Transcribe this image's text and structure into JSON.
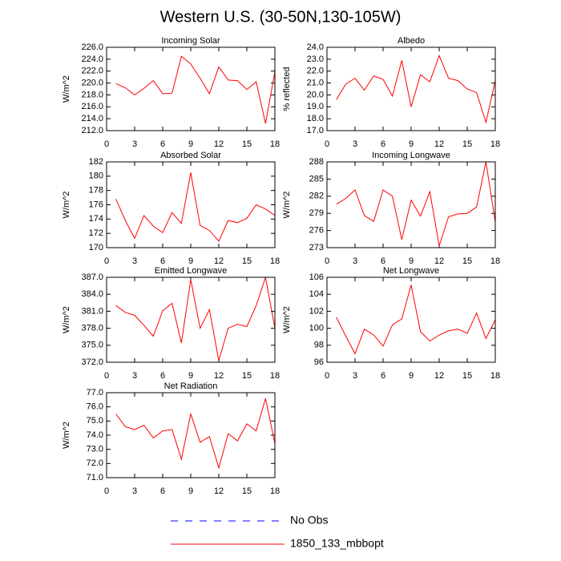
{
  "header": {
    "title": "Western U.S. (30-50N,130-105W)"
  },
  "legend": [
    {
      "name": "No Obs",
      "color": "#0000ff",
      "dashed": true
    },
    {
      "name": "1850_133_mbbopt",
      "color": "#ff0000",
      "dashed": false
    }
  ],
  "chart_data": [
    {
      "type": "line",
      "title": "Incoming Solar",
      "y_label": "W/m^2",
      "x": [
        1,
        2,
        3,
        4,
        5,
        6,
        7,
        8,
        9,
        10,
        11,
        12,
        13,
        14,
        15,
        16,
        17,
        18
      ],
      "series": [
        {
          "color": "#ff0000",
          "values": [
            219.9,
            219.2,
            218.0,
            219.1,
            220.4,
            218.2,
            218.3,
            224.5,
            223.2,
            220.8,
            218.2,
            222.7,
            220.5,
            220.4,
            218.9,
            220.2,
            213.2,
            221.9
          ]
        }
      ],
      "xlim": [
        0,
        18
      ],
      "xticks": [
        0,
        3,
        6,
        9,
        12,
        15,
        18
      ],
      "ylim": [
        212,
        226
      ],
      "yticks": [
        {
          "value": 212,
          "label": "212.0"
        },
        {
          "value": 214,
          "label": "214.0"
        },
        {
          "value": 216,
          "label": "216.0"
        },
        {
          "value": 218,
          "label": "218.0"
        },
        {
          "value": 220,
          "label": "220.0"
        },
        {
          "value": 222,
          "label": "222.0"
        },
        {
          "value": 224,
          "label": "224.0"
        },
        {
          "value": 226,
          "label": "226.0"
        }
      ]
    },
    {
      "type": "line",
      "title": "Albedo",
      "y_label": "% reflected",
      "x": [
        1,
        2,
        3,
        4,
        5,
        6,
        7,
        8,
        9,
        10,
        11,
        12,
        13,
        14,
        15,
        16,
        17,
        18
      ],
      "series": [
        {
          "color": "#ff0000",
          "values": [
            19.6,
            20.9,
            21.4,
            20.4,
            21.6,
            21.3,
            19.9,
            22.9,
            19.0,
            21.7,
            21.1,
            23.3,
            21.4,
            21.2,
            20.5,
            20.2,
            17.7,
            21.2
          ]
        }
      ],
      "xlim": [
        0,
        18
      ],
      "xticks": [
        0,
        3,
        6,
        9,
        12,
        15,
        18
      ],
      "ylim": [
        17,
        24
      ],
      "yticks": [
        {
          "value": 17,
          "label": "17.0"
        },
        {
          "value": 18,
          "label": "18.0"
        },
        {
          "value": 19,
          "label": "19.0"
        },
        {
          "value": 20,
          "label": "20.0"
        },
        {
          "value": 21,
          "label": "21.0"
        },
        {
          "value": 22,
          "label": "22.0"
        },
        {
          "value": 23,
          "label": "23.0"
        },
        {
          "value": 24,
          "label": "24.0"
        }
      ]
    },
    {
      "type": "line",
      "title": "Absorbed Solar",
      "y_label": "W/m^2",
      "x": [
        1,
        2,
        3,
        4,
        5,
        6,
        7,
        8,
        9,
        10,
        11,
        12,
        13,
        14,
        15,
        16,
        17,
        18
      ],
      "series": [
        {
          "color": "#ff0000",
          "values": [
            176.8,
            173.8,
            171.3,
            174.5,
            173.0,
            172.1,
            174.9,
            173.4,
            180.5,
            173.1,
            172.4,
            170.9,
            173.8,
            173.5,
            174.1,
            176.0,
            175.4,
            174.5
          ]
        }
      ],
      "xlim": [
        0,
        18
      ],
      "xticks": [
        0,
        3,
        6,
        9,
        12,
        15,
        18
      ],
      "ylim": [
        170,
        182
      ],
      "yticks": [
        170,
        172,
        174,
        176,
        178,
        180,
        182
      ]
    },
    {
      "type": "line",
      "title": "Incoming Longwave",
      "y_label": "W/m^2",
      "x": [
        1,
        2,
        3,
        4,
        5,
        6,
        7,
        8,
        9,
        10,
        11,
        12,
        13,
        14,
        15,
        16,
        17,
        18
      ],
      "series": [
        {
          "color": "#ff0000",
          "values": [
            280.6,
            281.6,
            283.1,
            278.6,
            277.6,
            283.1,
            282.0,
            274.4,
            281.3,
            278.5,
            282.8,
            273.3,
            278.4,
            278.9,
            279.0,
            280.1,
            288.0,
            277.5
          ]
        }
      ],
      "xlim": [
        0,
        18
      ],
      "xticks": [
        0,
        3,
        6,
        9,
        12,
        15,
        18
      ],
      "ylim": [
        273,
        288
      ],
      "yticks": [
        273,
        276,
        279,
        282,
        285,
        288
      ]
    },
    {
      "type": "line",
      "title": "Emitted Longwave",
      "y_label": "W/m^2",
      "x": [
        1,
        2,
        3,
        4,
        5,
        6,
        7,
        8,
        9,
        10,
        11,
        12,
        13,
        14,
        15,
        16,
        17,
        18
      ],
      "series": [
        {
          "color": "#ff0000",
          "values": [
            382.0,
            380.8,
            380.3,
            378.5,
            376.6,
            381.1,
            382.4,
            375.4,
            386.6,
            378.0,
            381.3,
            372.3,
            378.0,
            378.7,
            378.3,
            382.0,
            387.0,
            378.0
          ]
        }
      ],
      "xlim": [
        0,
        18
      ],
      "xticks": [
        0,
        3,
        6,
        9,
        12,
        15,
        18
      ],
      "ylim": [
        372,
        387
      ],
      "yticks": [
        {
          "value": 372,
          "label": "372.0"
        },
        {
          "value": 375,
          "label": "375.0"
        },
        {
          "value": 378,
          "label": "378.0"
        },
        {
          "value": 381,
          "label": "381.0"
        },
        {
          "value": 384,
          "label": "384.0"
        },
        {
          "value": 387,
          "label": "387.0"
        }
      ]
    },
    {
      "type": "line",
      "title": "Net Longwave",
      "y_label": "W/m^2",
      "x": [
        1,
        2,
        3,
        4,
        5,
        6,
        7,
        8,
        9,
        10,
        11,
        12,
        13,
        14,
        15,
        16,
        17,
        18
      ],
      "series": [
        {
          "color": "#ff0000",
          "values": [
            101.3,
            99.1,
            97.0,
            99.9,
            99.2,
            97.9,
            100.4,
            101.1,
            105.1,
            99.6,
            98.5,
            99.2,
            99.7,
            99.9,
            99.4,
            101.8,
            98.8,
            101.0
          ]
        }
      ],
      "xlim": [
        0,
        18
      ],
      "xticks": [
        0,
        3,
        6,
        9,
        12,
        15,
        18
      ],
      "ylim": [
        96,
        106
      ],
      "yticks": [
        96,
        98,
        100,
        102,
        104,
        106
      ]
    },
    {
      "type": "line",
      "title": "Net Radiation",
      "y_label": "W/m^2",
      "x": [
        1,
        2,
        3,
        4,
        5,
        6,
        7,
        8,
        9,
        10,
        11,
        12,
        13,
        14,
        15,
        16,
        17,
        18
      ],
      "series": [
        {
          "color": "#ff0000",
          "values": [
            75.5,
            74.6,
            74.4,
            74.7,
            73.8,
            74.3,
            74.4,
            72.3,
            75.5,
            73.5,
            73.9,
            71.7,
            74.1,
            73.6,
            74.8,
            74.3,
            76.6,
            73.4
          ]
        }
      ],
      "xlim": [
        0,
        18
      ],
      "xticks": [
        0,
        3,
        6,
        9,
        12,
        15,
        18
      ],
      "ylim": [
        71,
        77
      ],
      "yticks": [
        {
          "value": 71,
          "label": "71.0"
        },
        {
          "value": 72,
          "label": "72.0"
        },
        {
          "value": 73,
          "label": "73.0"
        },
        {
          "value": 74,
          "label": "74.0"
        },
        {
          "value": 75,
          "label": "75.0"
        },
        {
          "value": 76,
          "label": "76.0"
        },
        {
          "value": 77,
          "label": "77.0"
        }
      ]
    }
  ]
}
